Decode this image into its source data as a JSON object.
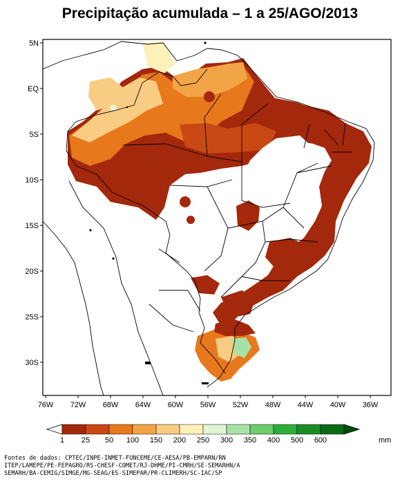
{
  "title": "Precipitação acumulada – 1 a 25/AGO/2013",
  "map": {
    "lat_labels": [
      "5N",
      "EQ",
      "5S",
      "10S",
      "15S",
      "20S",
      "25S",
      "30S"
    ],
    "lon_labels": [
      "76W",
      "72W",
      "68W",
      "64W",
      "60W",
      "56W",
      "52W",
      "48W",
      "44W",
      "40W",
      "36W"
    ]
  },
  "legend": {
    "unit": "mm",
    "ticks": [
      "1",
      "25",
      "50",
      "100",
      "150",
      "200",
      "250",
      "300",
      "350",
      "400",
      "500",
      "600"
    ],
    "colors": [
      "#ffffff",
      "#a3280c",
      "#c84914",
      "#e8781c",
      "#f2a546",
      "#f8cc82",
      "#fdf0b8",
      "#e2f4d4",
      "#a6e2a8",
      "#6ccb6c",
      "#2fad3a",
      "#1a8c26",
      "#0a6b14",
      "#024a0a"
    ]
  },
  "sources": [
    "Fontes de dados: CPTEC/INPE-INMET-FUNCEME/CE-AESA/PB-EMPARN/RN",
    "ITEP/LAMEPE/PE-FEPAGRO/RS-CHESF-COMET/RJ-DHME/PI-CMRH/SE-SEMARHN/A",
    "SEMARH/BA-CEMIG/SIMGE/MG-SEAG/ES-SIMEPAR/PR-CLIMERH/SC-IAC/SP"
  ]
}
